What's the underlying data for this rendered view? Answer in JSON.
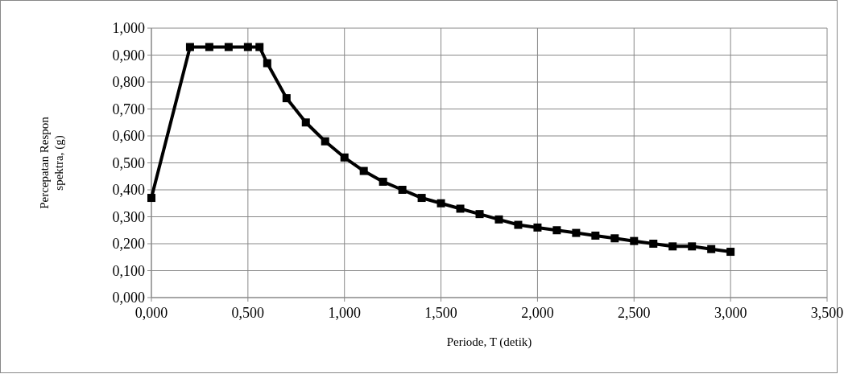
{
  "chart_data": {
    "type": "line",
    "xlabel": "Periode, T (detik)",
    "ylabel": "Percepatan Respon spektra, (g)",
    "x": [
      0,
      0.2,
      0.3,
      0.4,
      0.5,
      0.56,
      0.6,
      0.7,
      0.8,
      0.9,
      1.0,
      1.1,
      1.2,
      1.3,
      1.4,
      1.5,
      1.6,
      1.7,
      1.8,
      1.9,
      2.0,
      2.1,
      2.2,
      2.3,
      2.4,
      2.5,
      2.6,
      2.7,
      2.8,
      2.9,
      3.0
    ],
    "series": [
      {
        "color": "#000000",
        "values": [
          0.37,
          0.93,
          0.93,
          0.93,
          0.93,
          0.93,
          0.87,
          0.74,
          0.65,
          0.58,
          0.52,
          0.47,
          0.43,
          0.4,
          0.37,
          0.35,
          0.33,
          0.31,
          0.29,
          0.27,
          0.26,
          0.25,
          0.24,
          0.23,
          0.22,
          0.21,
          0.2,
          0.19,
          0.19,
          0.18,
          0.17
        ]
      }
    ],
    "xlim": [
      0,
      3.5
    ],
    "xticks": [
      {
        "value": 0,
        "label": "0,000"
      },
      {
        "value": 0.5,
        "label": "0,500"
      },
      {
        "value": 1,
        "label": "1,000"
      },
      {
        "value": 1.5,
        "label": "1,500"
      },
      {
        "value": 2,
        "label": "2,000"
      },
      {
        "value": 2.5,
        "label": "2,500"
      },
      {
        "value": 3,
        "label": "3,000"
      },
      {
        "value": 3.5,
        "label": "3,500"
      }
    ],
    "ylim": [
      0,
      1
    ],
    "yticks": [
      {
        "value": 0,
        "label": "0,000"
      },
      {
        "value": 0.1,
        "label": "0,100"
      },
      {
        "value": 0.2,
        "label": "0,200"
      },
      {
        "value": 0.3,
        "label": "0,300"
      },
      {
        "value": 0.4,
        "label": "0,400"
      },
      {
        "value": 0.5,
        "label": "0,500"
      },
      {
        "value": 0.6,
        "label": "0,600"
      },
      {
        "value": 0.7,
        "label": "0,700"
      },
      {
        "value": 0.8,
        "label": "0,800"
      },
      {
        "value": 0.9,
        "label": "0,900"
      },
      {
        "value": 1,
        "label": "1,000"
      }
    ],
    "grid": true,
    "marker": "square",
    "line_style": "solid"
  }
}
